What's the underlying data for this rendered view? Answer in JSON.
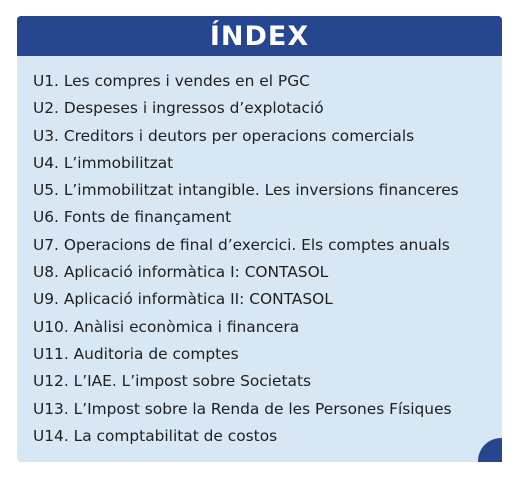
{
  "header": {
    "title": "ÍNDEX"
  },
  "units": [
    "U1. Les compres i vendes en el PGC",
    "U2. Despeses i ingressos d’explotació",
    "U3. Creditors i deutors per operacions comercials",
    "U4. L’immobilitzat",
    "U5. L’immobilitzat intangible. Les inversions financeres",
    "U6. Fonts de finançament",
    "U7. Operacions de final d’exercici. Els comptes anuals",
    "U8. Aplicació informàtica I: CONTASOL",
    "U9. Aplicació informàtica II: CONTASOL",
    "U10. Anàlisi econòmica i financera",
    "U11. Auditoria de comptes",
    "U12. L’IAE. L’impost sobre Societats",
    "U13. L’Impost sobre la Renda de les Persones Físiques",
    "U14. La comptabilitat de costos"
  ],
  "colors": {
    "header_background": "#26478f",
    "card_background": "#d7e7f4",
    "text": "#1f1f1f"
  }
}
